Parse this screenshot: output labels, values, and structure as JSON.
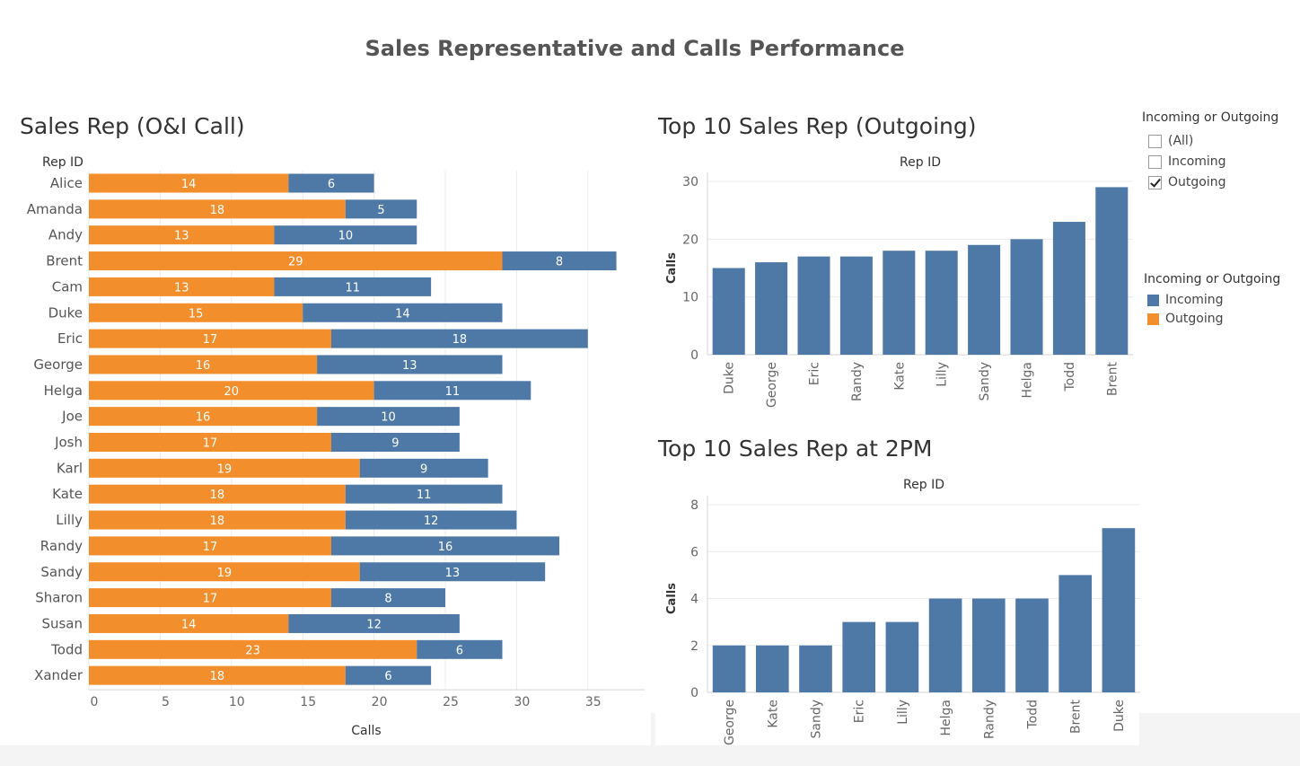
{
  "dashboard_title": "Sales Representative and Calls Performance",
  "colors": {
    "incoming": "#4e79a7",
    "outgoing": "#f28e2b"
  },
  "filter": {
    "title": "Incoming or Outgoing",
    "options": [
      {
        "label": "(All)",
        "checked": false
      },
      {
        "label": "Incoming",
        "checked": false
      },
      {
        "label": "Outgoing",
        "checked": true
      }
    ]
  },
  "legend": {
    "title": "Incoming or Outgoing",
    "items": [
      {
        "label": "Incoming",
        "color": "#4e79a7"
      },
      {
        "label": "Outgoing",
        "color": "#f28e2b"
      }
    ]
  },
  "chart_data": [
    {
      "type": "bar",
      "orientation": "horizontal",
      "stacked": true,
      "title": "Sales Rep (O&I Call)",
      "ylabel": "Rep ID",
      "xlabel": "Calls",
      "xlim": [
        0,
        37
      ],
      "xticks": [
        0,
        5,
        10,
        15,
        20,
        25,
        30,
        35
      ],
      "categories": [
        "Alice",
        "Amanda",
        "Andy",
        "Brent",
        "Cam",
        "Duke",
        "Eric",
        "George",
        "Helga",
        "Joe",
        "Josh",
        "Karl",
        "Kate",
        "Lilly",
        "Randy",
        "Sandy",
        "Sharon",
        "Susan",
        "Todd",
        "Xander"
      ],
      "series": [
        {
          "name": "Outgoing",
          "color": "#f28e2b",
          "values": [
            14,
            18,
            13,
            29,
            13,
            15,
            17,
            16,
            20,
            16,
            17,
            19,
            18,
            18,
            17,
            19,
            17,
            14,
            23,
            18
          ]
        },
        {
          "name": "Incoming",
          "color": "#4e79a7",
          "values": [
            6,
            5,
            10,
            8,
            11,
            14,
            18,
            13,
            11,
            10,
            9,
            9,
            11,
            12,
            16,
            13,
            8,
            12,
            6,
            6
          ]
        }
      ]
    },
    {
      "type": "bar",
      "title": "Top 10 Sales Rep (Outgoing)",
      "xlabel": "Rep ID",
      "ylabel": "Calls",
      "ylim": [
        0,
        30
      ],
      "yticks": [
        0,
        10,
        20,
        30
      ],
      "categories": [
        "Duke",
        "George",
        "Eric",
        "Randy",
        "Kate",
        "Lilly",
        "Sandy",
        "Helga",
        "Todd",
        "Brent"
      ],
      "values": [
        15,
        16,
        17,
        17,
        18,
        18,
        19,
        20,
        23,
        29
      ],
      "color": "#4e79a7"
    },
    {
      "type": "bar",
      "title": "Top 10 Sales Rep at 2PM",
      "xlabel": "Rep ID",
      "ylabel": "Calls",
      "ylim": [
        0,
        8
      ],
      "yticks": [
        0,
        2,
        4,
        6,
        8
      ],
      "categories": [
        "George",
        "Kate",
        "Sandy",
        "Eric",
        "Lilly",
        "Helga",
        "Randy",
        "Todd",
        "Brent",
        "Duke"
      ],
      "values": [
        2,
        2,
        2,
        3,
        3,
        4,
        4,
        4,
        5,
        7
      ],
      "color": "#4e79a7"
    }
  ]
}
